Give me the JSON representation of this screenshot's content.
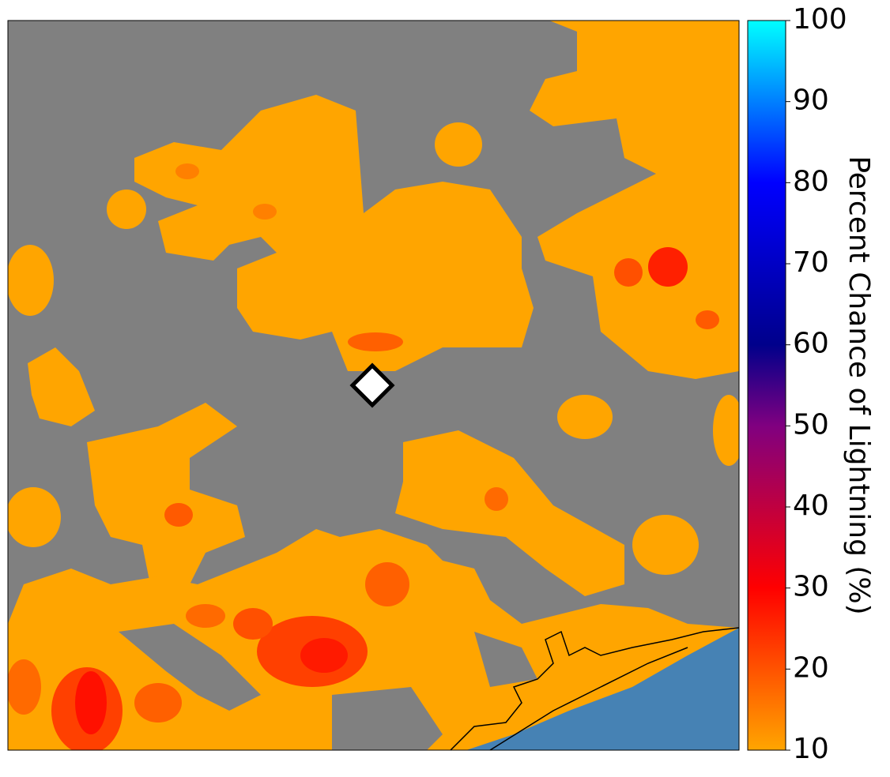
{
  "map": {
    "colorbar": {
      "label": "Percent Chance of Lightning (%)",
      "range": [
        10,
        100
      ],
      "ticks": [
        10,
        20,
        30,
        40,
        50,
        60,
        70,
        80,
        90,
        100
      ],
      "colors": [
        {
          "value": 10,
          "color": "#ffa500"
        },
        {
          "value": 30,
          "color": "#ff0000"
        },
        {
          "value": 50,
          "color": "#800080"
        },
        {
          "value": 60,
          "color": "#00008b"
        },
        {
          "value": 80,
          "color": "#0000ff"
        },
        {
          "value": 100,
          "color": "#00ffff"
        }
      ]
    }
  }
}
